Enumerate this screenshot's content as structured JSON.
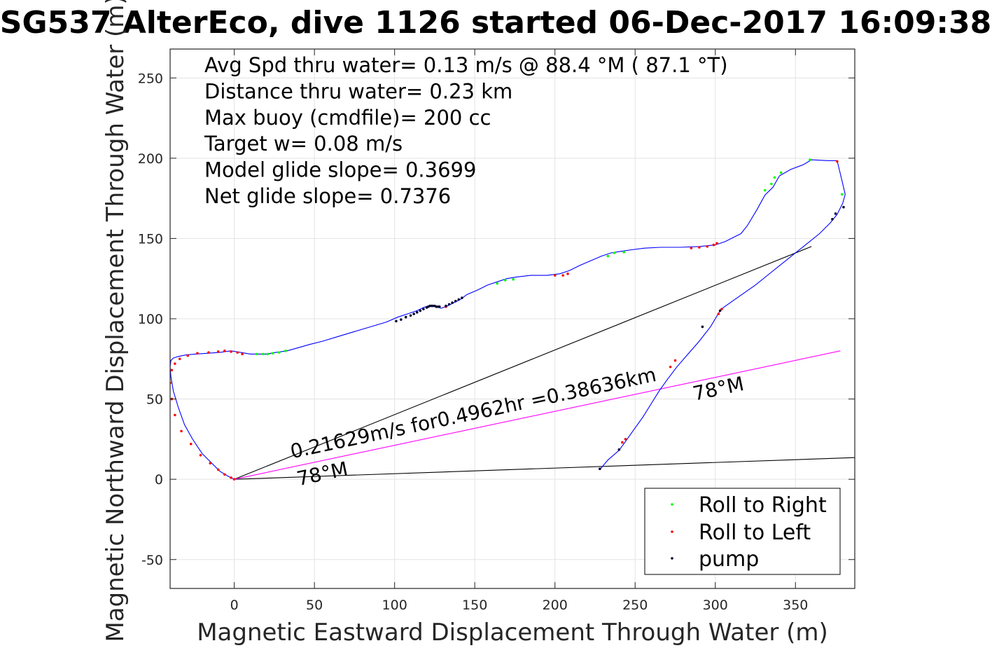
{
  "chart_data": {
    "type": "line",
    "title": "SG537 AlterEco, dive 1126 started 06-Dec-2017 16:09:38",
    "xlabel": "Magnetic Eastward Displacement Through Water (m)",
    "ylabel": "Magnetic Northward Displacement Through Water (m)",
    "xlim": [
      -40,
      387
    ],
    "ylim": [
      -68,
      268
    ],
    "xticks": [
      0,
      50,
      100,
      150,
      200,
      250,
      300,
      350
    ],
    "yticks": [
      -50,
      0,
      50,
      100,
      150,
      200,
      250
    ],
    "grid": true,
    "info_lines": [
      "Avg Spd thru water=  0.13 m/s @  88.4 °M ( 87.1 °T)",
      "Distance thru water=  0.23 km",
      "Max buoy (cmdfile)= 200 cc",
      "Target w= 0.08 m/s",
      "Model glide slope= 0.3699",
      "Net glide slope= 0.7376"
    ],
    "track": {
      "name": "displacement",
      "color": "#0000ff",
      "x": [
        0,
        -4,
        -9,
        -15,
        -20,
        -26,
        -31,
        -35,
        -38,
        -39.5,
        -40,
        -39.5,
        -38,
        -35,
        -30,
        -24,
        -17,
        -9,
        -2,
        4,
        10,
        15,
        20,
        26,
        33,
        40,
        47,
        55,
        65,
        75,
        85,
        95,
        102,
        108,
        114,
        118,
        121,
        123,
        126,
        129,
        133,
        137,
        141,
        145,
        152,
        158,
        164,
        170,
        176,
        185,
        195,
        203,
        209,
        215,
        222,
        229,
        235,
        241,
        248,
        256,
        266,
        278,
        290,
        300,
        306,
        312,
        316,
        320,
        326,
        331,
        336,
        340,
        347,
        355,
        360,
        370,
        376,
        379,
        381,
        379.5,
        378,
        376,
        372,
        365,
        355,
        345,
        335,
        325,
        315,
        305,
        303,
        297,
        290,
        283,
        276,
        270,
        265,
        260,
        255,
        250,
        245,
        240,
        233,
        228
      ],
      "y": [
        0,
        2,
        5,
        11,
        16,
        25,
        34,
        45,
        55,
        64,
        70,
        74,
        75.5,
        76.5,
        77.5,
        78,
        78.5,
        79,
        80,
        79,
        78,
        78,
        78,
        79,
        80,
        82,
        84,
        86,
        89,
        92,
        95,
        98,
        101,
        103,
        105,
        107,
        108,
        108.5,
        107.5,
        106.5,
        108,
        110,
        112,
        115,
        118,
        121,
        123,
        125,
        126,
        127,
        127,
        128,
        130,
        133,
        136,
        139,
        141,
        142,
        143,
        144,
        144.5,
        144.5,
        145,
        146,
        148,
        151,
        153,
        158,
        168,
        177,
        182,
        189,
        193,
        196,
        199,
        198.5,
        198.5,
        186,
        177.5,
        172,
        169,
        165,
        160,
        153,
        145,
        137,
        129,
        121,
        114,
        107,
        105,
        95,
        86,
        78,
        70,
        62,
        55,
        47,
        39,
        32,
        25,
        18,
        12,
        6
      ]
    },
    "heading_lines": [
      {
        "color": "#000000",
        "x": [
          0,
          360
        ],
        "y": [
          0,
          145
        ]
      },
      {
        "color": "#000000",
        "x": [
          0,
          387
        ],
        "y": [
          0,
          13.5
        ]
      },
      {
        "color": "#ff00ff",
        "x": [
          0,
          378
        ],
        "y": [
          0,
          80
        ]
      }
    ],
    "annotations": [
      {
        "text": "0.21629m/s for0.4962hr =0.38636km",
        "x": 36,
        "y": 13,
        "rotate": -12
      },
      {
        "text": "78°M",
        "x": 40,
        "y": -4,
        "rotate": -12
      },
      {
        "text": "78°M",
        "x": 287,
        "y": 49,
        "rotate": -12
      }
    ],
    "markers": {
      "roll_right": {
        "color": "#00ff00",
        "x": [
          14,
          18,
          21,
          24,
          28,
          32,
          164,
          169,
          174,
          233,
          237,
          243,
          331,
          335,
          337,
          341,
          359,
          379
        ],
        "y": [
          78,
          78,
          78,
          78.5,
          79,
          80,
          122,
          124,
          124.5,
          139,
          141,
          141.5,
          180,
          184,
          188,
          191,
          199,
          177.5
        ]
      },
      "roll_left": {
        "color": "#ff0000",
        "x": [
          0,
          -2,
          -6,
          -10,
          -15,
          -21,
          -27,
          -33,
          -37,
          -39,
          -40,
          -39,
          -37,
          -34,
          -29,
          -23,
          -16,
          -10,
          -6,
          -2,
          2,
          5,
          132,
          200,
          205,
          208,
          285,
          290,
          295,
          299,
          301,
          376,
          244,
          242,
          275,
          272,
          304,
          302
        ],
        "y": [
          0,
          1,
          3,
          6,
          10,
          15,
          22,
          30,
          40,
          50,
          60,
          68,
          72,
          75,
          77,
          78.5,
          79,
          79.5,
          80,
          79.5,
          79,
          78,
          107.5,
          127,
          127,
          128,
          144,
          144.5,
          145,
          146,
          147,
          198,
          25,
          23,
          74,
          70,
          106,
          103
        ]
      },
      "pump": {
        "color": "#000033",
        "x": [
          101,
          104,
          107,
          110,
          112,
          114,
          116,
          118,
          120,
          121,
          122,
          123,
          124,
          125,
          126,
          127,
          128,
          132,
          134,
          136,
          138,
          140,
          142,
          373,
          375,
          380,
          303,
          292,
          240,
          228
        ],
        "y": [
          98.5,
          99.5,
          101,
          102,
          103,
          104,
          105,
          106,
          107,
          107.5,
          108,
          108,
          108,
          108,
          107.5,
          107.5,
          107.5,
          108,
          109,
          110,
          111,
          112,
          113,
          162,
          165.5,
          169.5,
          105,
          95,
          18.5,
          6.5
        ]
      }
    },
    "legend": {
      "placement": "bottom-right",
      "entries": [
        {
          "label": "Roll to Right",
          "color": "#00ff00"
        },
        {
          "label": "Roll to Left",
          "color": "#ff0000"
        },
        {
          "label": "pump",
          "color": "#000033"
        }
      ]
    }
  }
}
